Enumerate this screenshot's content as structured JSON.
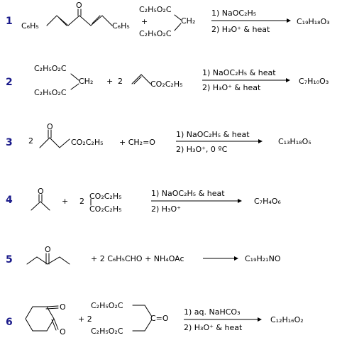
{
  "reactions": [
    {
      "number": "1",
      "dienone_phenyl_left": "C₆H₅",
      "dienone_phenyl_right": "C₆H₅",
      "carbonyl_o": "O",
      "plus": "+",
      "malonate_top": "C₂H₅O₂C",
      "malonate_ch2": "CH₂",
      "malonate_bottom": "C₂H₅O₂C",
      "condition_1": "1) NaOC₂H₅",
      "condition_2": "2) H₃O⁺ & heat",
      "product": "C₁₉H₁₈O₃"
    },
    {
      "number": "2",
      "malonate_top": "C₂H₅O₂C",
      "malonate_ch2": "CH₂",
      "malonate_bottom": "C₂H₅O₂C",
      "plus": "+",
      "coefficient": "2",
      "acrylate_ester": "CO₂C₂H₅",
      "condition_1": "1) NaOC₂H₅ & heat",
      "condition_2": "2) H₃O⁺ & heat",
      "product": "C₇H₁₀O₃"
    },
    {
      "number": "3",
      "coefficient": "2",
      "ketoester_o": "O",
      "ketoester_ester": "CO₂C₂H₅",
      "plus_formaldehyde": "+ CH₂=O",
      "condition_1": "1) NaOC₂H₅ & heat",
      "condition_2": "2) H₃O⁺, 0 ºC",
      "product": "C₁₃H₁₈O₅"
    },
    {
      "number": "4",
      "acetone_o": "O",
      "plus": "+",
      "coefficient": "2",
      "oxalate_top": "CO₂C₂H₅",
      "oxalate_bottom": "CO₂C₂H₅",
      "condition_1": "1) NaOC₂H₅ & heat",
      "condition_2": "2) H₃O⁺",
      "product": "C₇H₄O₆"
    },
    {
      "number": "5",
      "ketone_o": "O",
      "reagents": "+ 2 C₆H₅CHO + NH₄OAc",
      "product": "C₁₉H₂₁NO"
    },
    {
      "number": "6",
      "dione_o_top": "O",
      "dione_o_bottom": "O",
      "plus_coefficient": "+ 2",
      "ketodiester_top": "C₂H₅O₂C",
      "ketodiester_bottom": "C₂H₅O₂C",
      "ketodiester_carbonyl": "C=O",
      "condition_1": "1) aq. NaHCO₃",
      "condition_2": "2) H₃O⁺ & heat",
      "product": "C₁₂H₁₆O₂"
    }
  ]
}
